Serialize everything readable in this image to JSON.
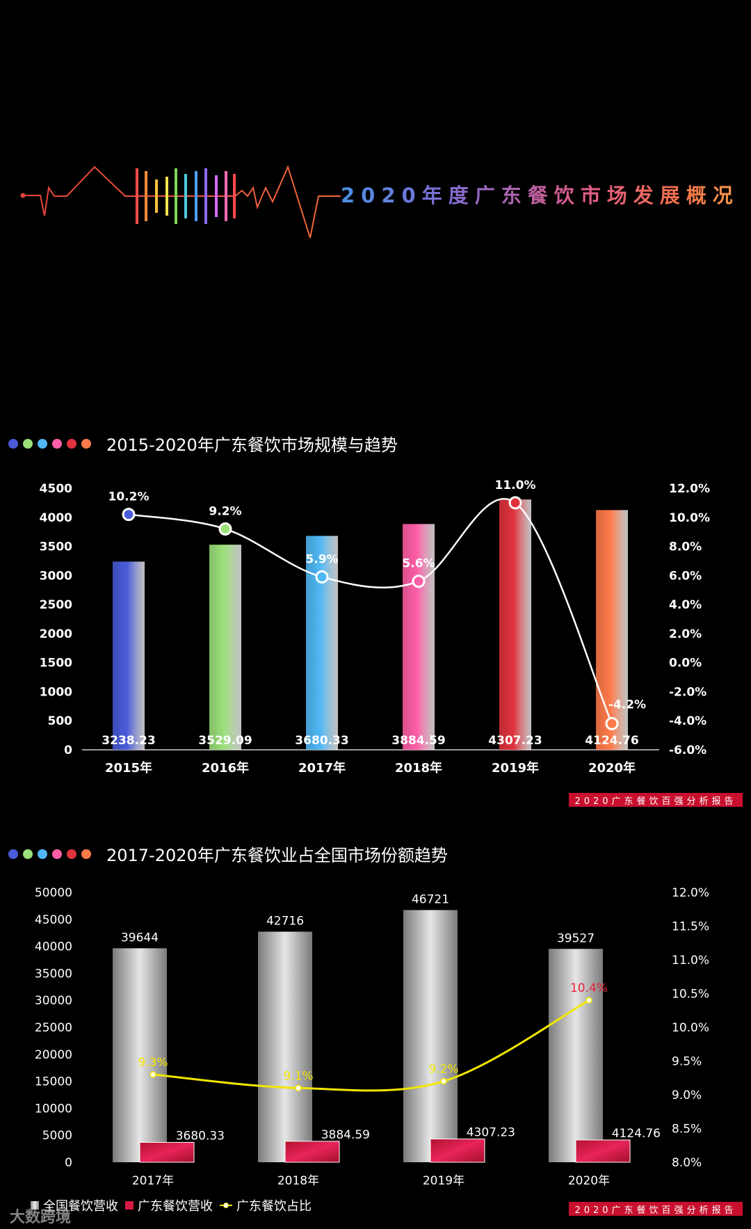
{
  "header": {
    "title": "2020年度广东餐饮市场发展概况"
  },
  "colors": {
    "dots": [
      "#4a5bd9",
      "#9be07a",
      "#4fb8f5",
      "#ff5fa8",
      "#e0333d",
      "#ff7a4a"
    ],
    "bars1": [
      "#4a5bd9",
      "#9be07a",
      "#4fb8f5",
      "#ff5fa8",
      "#e0333d",
      "#ff7a4a"
    ],
    "rainbow": [
      "#ff4b4b",
      "#ff8a3d",
      "#ffc23d",
      "#f6e64a",
      "#7fd65a",
      "#4fc9d9",
      "#4aa3ff",
      "#8a6cff",
      "#d56cff",
      "#ff6cb8",
      "#ff4b4b"
    ]
  },
  "section1": {
    "title": "2015-2020年广东餐饮市场规模与趋势",
    "report_tag": "2020广东餐饮百强分析报告"
  },
  "section2": {
    "title": "2017-2020年广东餐饮业占全国市场份额趋势",
    "report_tag": "2020广东餐饮百强分析报告",
    "legend": {
      "national": "全国餐饮营收",
      "guangdong": "广东餐饮营收",
      "share": "广东餐饮占比"
    }
  },
  "watermark": "大数跨境",
  "chart_data": [
    {
      "type": "bar",
      "title": "2015-2020年广东餐饮市场规模与趋势",
      "categories": [
        "2015年",
        "2016年",
        "2017年",
        "2018年",
        "2019年",
        "2020年"
      ],
      "series": [
        {
          "values": [
            3238.23,
            3529.09,
            3680.33,
            3884.59,
            4307.23,
            4124.76
          ],
          "labels": [
            "3238.23",
            "3529.09",
            "3680.33",
            "3884.59",
            "4307.23",
            "4124.76"
          ]
        },
        {
          "type": "line",
          "axis": "right",
          "values": [
            10.2,
            9.2,
            5.9,
            5.6,
            11.0,
            -4.2
          ],
          "labels": [
            "10.2%",
            "9.2%",
            "5.9%",
            "5.6%",
            "11.0%",
            "-4.2%"
          ]
        }
      ],
      "ylim": [
        0,
        4500
      ],
      "yticks": [
        "0",
        "500",
        "1000",
        "1500",
        "2000",
        "2500",
        "3000",
        "3500",
        "4000",
        "4500"
      ],
      "y2lim": [
        -6.0,
        12.0
      ],
      "y2ticks": [
        "-6.0%",
        "-4.0%",
        "-2.0%",
        "0.0%",
        "2.0%",
        "4.0%",
        "6.0%",
        "8.0%",
        "10.0%",
        "12.0%"
      ],
      "legend": "none",
      "grid": false
    },
    {
      "type": "bar",
      "title": "2017-2020年广东餐饮业占全国市场份额趋势",
      "categories": [
        "2017年",
        "2018年",
        "2019年",
        "2020年"
      ],
      "series": [
        {
          "name": "全国餐饮营收",
          "values": [
            39644,
            42716,
            46721,
            39527
          ],
          "labels": [
            "39644",
            "42716",
            "46721",
            "39527"
          ]
        },
        {
          "name": "广东餐饮营收",
          "values": [
            3680.33,
            3884.59,
            4307.23,
            4124.76
          ],
          "labels": [
            "3680.33",
            "3884.59",
            "4307.23",
            "4124.76"
          ]
        },
        {
          "name": "广东餐饮占比",
          "type": "line",
          "axis": "right",
          "values": [
            9.3,
            9.1,
            9.2,
            10.4
          ],
          "labels": [
            "9.3%",
            "9.1%",
            "9.2%",
            "10.4%"
          ]
        }
      ],
      "ylim": [
        0,
        50000
      ],
      "yticks": [
        "0",
        "5000",
        "10000",
        "15000",
        "20000",
        "25000",
        "30000",
        "35000",
        "40000",
        "45000",
        "50000"
      ],
      "y2lim": [
        8.0,
        12.0
      ],
      "y2ticks": [
        "8.0%",
        "8.5%",
        "9.0%",
        "9.5%",
        "10.0%",
        "10.5%",
        "11.0%",
        "11.5%",
        "12.0%"
      ],
      "legend": "bottom-left",
      "grid": false
    }
  ]
}
